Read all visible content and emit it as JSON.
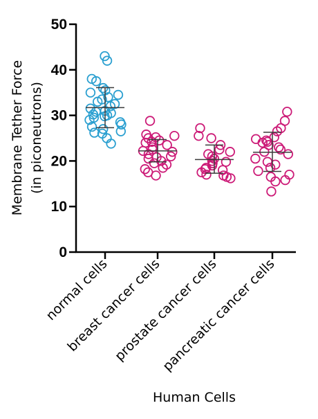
{
  "chart_data": {
    "type": "scatter",
    "xlabel": "Human Cells",
    "ylabel_lines": [
      "Membrane Tether Force",
      "(in piconeutrons)"
    ],
    "ylim": [
      0,
      50
    ],
    "yticks": [
      0,
      10,
      20,
      30,
      40,
      50
    ],
    "grid": false,
    "categories": [
      "normal cells",
      "breast cancer cells",
      "prostate cancer cells",
      "pancreatic cancer cells"
    ],
    "series": [
      {
        "category": "normal cells",
        "color": "#2a9fd0",
        "mean": 31.7,
        "sd_low": 27.3,
        "sd_high": 36.1,
        "values": [
          43.0,
          42.0,
          38.0,
          37.5,
          36.0,
          35.5,
          35.0,
          34.5,
          34.0,
          33.5,
          33.0,
          32.5,
          32.0,
          31.5,
          31.0,
          30.8,
          30.5,
          30.2,
          30.0,
          29.8,
          29.5,
          29.0,
          28.5,
          28.0,
          27.5,
          27.0,
          26.5,
          26.2,
          26.0,
          25.0,
          23.8
        ]
      },
      {
        "category": "breast cancer cells",
        "color": "#cc1a77",
        "mean": 22.2,
        "sd_low": 19.8,
        "sd_high": 24.7,
        "values": [
          28.8,
          25.8,
          25.5,
          25.2,
          25.0,
          24.5,
          24.2,
          24.0,
          23.5,
          23.0,
          22.5,
          22.2,
          22.0,
          21.5,
          21.0,
          20.8,
          20.5,
          20.0,
          19.5,
          19.2,
          18.5,
          18.2,
          17.5,
          16.8
        ]
      },
      {
        "category": "prostate cancer cells",
        "color": "#cc1a77",
        "mean": 20.3,
        "sd_low": 17.3,
        "sd_high": 23.5,
        "values": [
          27.2,
          25.5,
          25.0,
          23.5,
          22.5,
          22.0,
          21.5,
          21.0,
          20.5,
          20.0,
          19.8,
          19.5,
          19.0,
          18.5,
          18.2,
          18.0,
          17.5,
          17.0,
          16.8,
          16.5,
          16.2
        ]
      },
      {
        "category": "pancreatic cancer cells",
        "color": "#cc1a77",
        "mean": 21.9,
        "sd_low": 17.7,
        "sd_high": 26.3,
        "values": [
          30.8,
          28.8,
          27.2,
          26.5,
          25.2,
          24.8,
          24.5,
          24.2,
          24.0,
          23.5,
          23.0,
          22.5,
          22.0,
          21.5,
          20.5,
          19.8,
          19.2,
          18.5,
          17.8,
          17.0,
          16.5,
          15.8,
          15.5,
          13.3
        ]
      }
    ]
  }
}
